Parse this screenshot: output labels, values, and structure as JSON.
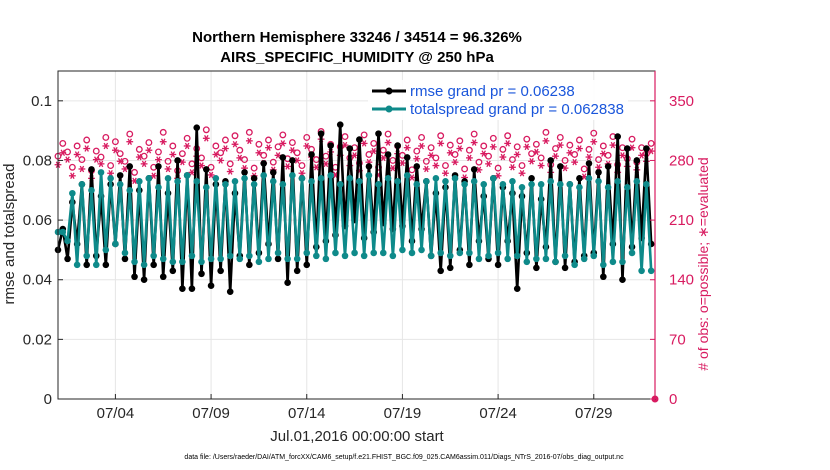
{
  "chart_data": {
    "type": "line",
    "title": "Northern Hemisphere 33246 / 34514 = 96.326%",
    "subtitle": "AIRS_SPECIFIC_HUMIDITY @ 250 hPa",
    "xlabel": "Jul.01,2016 00:00:00 start",
    "ylabel": "rmse and totalspread",
    "y2label": "# of obs: o=possible; ∗=evaluated",
    "xlim": [
      1,
      32.2
    ],
    "ylim": [
      0,
      0.11
    ],
    "y2lim": [
      0,
      385
    ],
    "x_ticks": [
      4,
      9,
      14,
      19,
      24,
      29
    ],
    "x_tick_labels": [
      "07/04",
      "07/09",
      "07/14",
      "07/19",
      "07/24",
      "07/29"
    ],
    "y_ticks": [
      0,
      0.02,
      0.04,
      0.06,
      0.08,
      0.1
    ],
    "y_tick_labels": [
      "0",
      "0.02",
      "0.04",
      "0.06",
      "0.08",
      "0.1"
    ],
    "y2_ticks": [
      0,
      70,
      140,
      210,
      280,
      350
    ],
    "y2_tick_labels": [
      "0",
      "70",
      "140",
      "210",
      "280",
      "350"
    ],
    "legend_position": "top-right",
    "colors": {
      "rmse": "#000000",
      "spread": "#0e8a8a",
      "obs": "#d81b60",
      "axes": "#262626"
    },
    "series": [
      {
        "name": "rmse",
        "legend": "rmse grand pr = 0.06238",
        "x": [
          1.0,
          1.25,
          1.5,
          1.75,
          2.0,
          2.25,
          2.5,
          2.75,
          3.0,
          3.25,
          3.5,
          3.75,
          4.0,
          4.25,
          4.5,
          4.75,
          5.0,
          5.25,
          5.5,
          5.75,
          6.0,
          6.25,
          6.5,
          6.75,
          7.0,
          7.25,
          7.5,
          7.75,
          8.0,
          8.25,
          8.5,
          8.75,
          9.0,
          9.25,
          9.5,
          9.75,
          10.0,
          10.25,
          10.5,
          10.75,
          11.0,
          11.25,
          11.5,
          11.75,
          12.0,
          12.25,
          12.5,
          12.75,
          13.0,
          13.25,
          13.5,
          13.75,
          14.0,
          14.25,
          14.5,
          14.75,
          15.0,
          15.25,
          15.5,
          15.75,
          16.0,
          16.25,
          16.5,
          16.75,
          17.0,
          17.25,
          17.5,
          17.75,
          18.0,
          18.25,
          18.5,
          18.75,
          19.0,
          19.25,
          19.5,
          19.75,
          20.0,
          20.25,
          20.5,
          20.75,
          21.0,
          21.25,
          21.5,
          21.75,
          22.0,
          22.25,
          22.5,
          22.75,
          23.0,
          23.25,
          23.5,
          23.75,
          24.0,
          24.25,
          24.5,
          24.75,
          25.0,
          25.25,
          25.5,
          25.75,
          26.0,
          26.25,
          26.5,
          26.75,
          27.0,
          27.25,
          27.5,
          27.75,
          28.0,
          28.25,
          28.5,
          28.75,
          29.0,
          29.25,
          29.5,
          29.75,
          30.0,
          30.25,
          30.5,
          30.75,
          31.0,
          31.25,
          31.5,
          31.75,
          32.0
        ],
        "values": [
          0.05,
          0.057,
          0.047,
          0.066,
          0.052,
          0.072,
          0.045,
          0.077,
          0.048,
          0.068,
          0.045,
          0.072,
          0.052,
          0.075,
          0.047,
          0.078,
          0.041,
          0.07,
          0.04,
          0.074,
          0.045,
          0.078,
          0.041,
          0.069,
          0.043,
          0.08,
          0.037,
          0.075,
          0.037,
          0.091,
          0.042,
          0.077,
          0.038,
          0.072,
          0.043,
          0.073,
          0.036,
          0.069,
          0.048,
          0.076,
          0.045,
          0.074,
          0.049,
          0.079,
          0.052,
          0.076,
          0.047,
          0.081,
          0.039,
          0.08,
          0.043,
          0.074,
          0.045,
          0.082,
          0.051,
          0.089,
          0.053,
          0.085,
          0.055,
          0.092,
          0.058,
          0.084,
          0.06,
          0.087,
          0.054,
          0.078,
          0.056,
          0.089,
          0.059,
          0.082,
          0.057,
          0.085,
          0.058,
          0.081,
          0.053,
          0.078,
          0.057,
          0.073,
          0.048,
          0.069,
          0.043,
          0.071,
          0.044,
          0.075,
          0.05,
          0.073,
          0.045,
          0.077,
          0.053,
          0.068,
          0.047,
          0.074,
          0.045,
          0.071,
          0.053,
          0.069,
          0.037,
          0.068,
          0.049,
          0.074,
          0.044,
          0.067,
          0.051,
          0.08,
          0.046,
          0.078,
          0.044,
          0.072,
          0.046,
          0.074,
          0.048,
          0.079,
          0.049,
          0.076,
          0.041,
          0.078,
          0.052,
          0.088,
          0.04,
          0.084,
          0.051,
          0.08,
          0.054,
          0.084,
          0.052
        ]
      },
      {
        "name": "totalspread",
        "legend": "totalspread grand pr = 0.062838",
        "x": [
          1.0,
          1.25,
          1.5,
          1.75,
          2.0,
          2.25,
          2.5,
          2.75,
          3.0,
          3.25,
          3.5,
          3.75,
          4.0,
          4.25,
          4.5,
          4.75,
          5.0,
          5.25,
          5.5,
          5.75,
          6.0,
          6.25,
          6.5,
          6.75,
          7.0,
          7.25,
          7.5,
          7.75,
          8.0,
          8.25,
          8.5,
          8.75,
          9.0,
          9.25,
          9.5,
          9.75,
          10.0,
          10.25,
          10.5,
          10.75,
          11.0,
          11.25,
          11.5,
          11.75,
          12.0,
          12.25,
          12.5,
          12.75,
          13.0,
          13.25,
          13.5,
          13.75,
          14.0,
          14.25,
          14.5,
          14.75,
          15.0,
          15.25,
          15.5,
          15.75,
          16.0,
          16.25,
          16.5,
          16.75,
          17.0,
          17.25,
          17.5,
          17.75,
          18.0,
          18.25,
          18.5,
          18.75,
          19.0,
          19.25,
          19.5,
          19.75,
          20.0,
          20.25,
          20.5,
          20.75,
          21.0,
          21.25,
          21.5,
          21.75,
          22.0,
          22.25,
          22.5,
          22.75,
          23.0,
          23.25,
          23.5,
          23.75,
          24.0,
          24.25,
          24.5,
          24.75,
          25.0,
          25.25,
          25.5,
          25.75,
          26.0,
          26.25,
          26.5,
          26.75,
          27.0,
          27.25,
          27.5,
          27.75,
          28.0,
          28.25,
          28.5,
          28.75,
          29.0,
          29.25,
          29.5,
          29.75,
          30.0,
          30.25,
          30.5,
          30.75,
          31.0,
          31.25,
          31.5,
          31.75,
          32.0
        ],
        "values": [
          0.056,
          0.056,
          0.053,
          0.069,
          0.045,
          0.072,
          0.048,
          0.07,
          0.045,
          0.076,
          0.05,
          0.074,
          0.052,
          0.072,
          0.049,
          0.07,
          0.046,
          0.073,
          0.045,
          0.074,
          0.048,
          0.071,
          0.047,
          0.074,
          0.046,
          0.073,
          0.046,
          0.075,
          0.048,
          0.073,
          0.046,
          0.071,
          0.047,
          0.074,
          0.047,
          0.072,
          0.048,
          0.073,
          0.047,
          0.074,
          0.048,
          0.072,
          0.046,
          0.075,
          0.047,
          0.073,
          0.049,
          0.072,
          0.047,
          0.075,
          0.047,
          0.074,
          0.049,
          0.073,
          0.048,
          0.074,
          0.047,
          0.075,
          0.049,
          0.072,
          0.048,
          0.074,
          0.049,
          0.073,
          0.048,
          0.075,
          0.049,
          0.072,
          0.049,
          0.074,
          0.048,
          0.073,
          0.05,
          0.075,
          0.049,
          0.072,
          0.05,
          0.073,
          0.048,
          0.074,
          0.049,
          0.073,
          0.048,
          0.074,
          0.049,
          0.072,
          0.049,
          0.073,
          0.047,
          0.072,
          0.048,
          0.074,
          0.049,
          0.072,
          0.047,
          0.073,
          0.048,
          0.071,
          0.046,
          0.072,
          0.047,
          0.072,
          0.047,
          0.073,
          0.046,
          0.072,
          0.048,
          0.072,
          0.045,
          0.071,
          0.047,
          0.074,
          0.048,
          0.073,
          0.045,
          0.071,
          0.046,
          0.073,
          0.046,
          0.071,
          0.049,
          0.073,
          0.043,
          0.072,
          0.043
        ]
      }
    ],
    "obs": {
      "x": [
        1.0,
        1.25,
        1.5,
        1.75,
        2.0,
        2.25,
        2.5,
        2.75,
        3.0,
        3.25,
        3.5,
        3.75,
        4.0,
        4.25,
        4.5,
        4.75,
        5.0,
        5.25,
        5.5,
        5.75,
        6.0,
        6.25,
        6.5,
        6.75,
        7.0,
        7.25,
        7.5,
        7.75,
        8.0,
        8.25,
        8.5,
        8.75,
        9.0,
        9.25,
        9.5,
        9.75,
        10.0,
        10.25,
        10.5,
        10.75,
        11.0,
        11.25,
        11.5,
        11.75,
        12.0,
        12.25,
        12.5,
        12.75,
        13.0,
        13.25,
        13.5,
        13.75,
        14.0,
        14.25,
        14.5,
        14.75,
        15.0,
        15.25,
        15.5,
        15.75,
        16.0,
        16.25,
        16.5,
        16.75,
        17.0,
        17.25,
        17.5,
        17.75,
        18.0,
        18.25,
        18.5,
        18.75,
        19.0,
        19.25,
        19.5,
        19.75,
        20.0,
        20.25,
        20.5,
        20.75,
        21.0,
        21.25,
        21.5,
        21.75,
        22.0,
        22.25,
        22.5,
        22.75,
        23.0,
        23.25,
        23.5,
        23.75,
        24.0,
        24.25,
        24.5,
        24.75,
        25.0,
        25.25,
        25.5,
        25.75,
        26.0,
        26.25,
        26.5,
        26.75,
        27.0,
        27.25,
        27.5,
        27.75,
        28.0,
        28.25,
        28.5,
        28.75,
        29.0,
        29.25,
        29.5,
        29.75,
        30.0,
        30.25,
        30.5,
        30.75,
        31.0,
        31.25,
        31.5,
        31.75,
        32.0
      ],
      "possible": [
        285,
        300,
        290,
        272,
        297,
        281,
        304,
        268,
        291,
        284,
        307,
        274,
        302,
        288,
        279,
        311,
        266,
        293,
        285,
        301,
        272,
        290,
        313,
        279,
        297,
        268,
        288,
        306,
        276,
        294,
        283,
        316,
        272,
        297,
        289,
        304,
        276,
        309,
        292,
        281,
        313,
        271,
        299,
        286,
        304,
        278,
        296,
        310,
        282,
        301,
        289,
        274,
        307,
        293,
        281,
        314,
        285,
        299,
        272,
        296,
        308,
        283,
        295,
        277,
        310,
        287,
        300,
        272,
        292,
        311,
        280,
        297,
        286,
        304,
        269,
        291,
        307,
        279,
        295,
        283,
        309,
        274,
        298,
        287,
        303,
        270,
        292,
        311,
        278,
        297,
        285,
        306,
        271,
        293,
        309,
        281,
        296,
        274,
        305,
        288,
        299,
        283,
        313,
        275,
        294,
        307,
        280,
        298,
        287,
        304,
        270,
        293,
        312,
        281,
        297,
        286,
        308,
        275,
        295,
        282,
        305,
        278,
        295,
        288,
        300
      ],
      "evaluated": [
        275,
        289,
        281,
        262,
        287,
        270,
        294,
        259,
        281,
        276,
        297,
        265,
        292,
        279,
        270,
        302,
        256,
        284,
        276,
        292,
        262,
        281,
        302,
        270,
        287,
        259,
        278,
        297,
        266,
        285,
        274,
        306,
        263,
        287,
        280,
        294,
        267,
        299,
        283,
        271,
        303,
        262,
        289,
        277,
        295,
        269,
        286,
        300,
        273,
        292,
        280,
        265,
        297,
        284,
        272,
        305,
        276,
        290,
        263,
        286,
        298,
        274,
        286,
        268,
        300,
        278,
        291,
        263,
        283,
        301,
        271,
        288,
        277,
        295,
        260,
        282,
        297,
        270,
        286,
        274,
        300,
        265,
        289,
        278,
        294,
        260,
        283,
        301,
        269,
        288,
        276,
        296,
        262,
        284,
        300,
        272,
        287,
        265,
        296,
        279,
        290,
        274,
        303,
        266,
        285,
        298,
        271,
        289,
        278,
        294,
        261,
        284,
        302,
        272,
        288,
        276,
        298,
        266,
        286,
        273,
        295,
        269,
        286,
        279,
        291
      ]
    },
    "footnote": "data file: /Users/raeder/DAI/ATM_forcXX/CAM6_setup/f.e21.FHIST_BGC.f09_025.CAM6assim.011/Diags_NTrS_2016-07/obs_diag_output.nc"
  }
}
